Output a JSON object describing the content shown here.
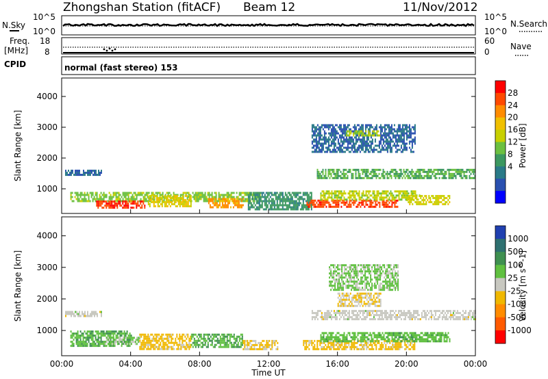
{
  "header": {
    "station": "Zhongshan Station (fitACF)",
    "beam": "Beam 12",
    "date": "11/Nov/2012"
  },
  "strip": {
    "nsky_label": "N.Sky",
    "nsearch_label": "N.Search",
    "nsky_ticks": [
      "10^5",
      "10^0"
    ],
    "nsearch_ticks": [
      "10^5",
      "10^0"
    ],
    "freq_label": "Freq.",
    "freq_unit": "[MHz]",
    "freq_ticks": [
      "18",
      "8"
    ],
    "nave_label": "Nave",
    "nave_ticks": [
      "60",
      "0"
    ],
    "cpid_label": "CPID",
    "cpid_text": "normal (fast stereo) 153"
  },
  "axes": {
    "ylabel": "Slant Range [km]",
    "xlabel": "Time UT",
    "yticks": [
      "4000",
      "3000",
      "2000",
      "1000"
    ],
    "xticks": [
      "00:00",
      "04:00",
      "08:00",
      "12:00",
      "16:00",
      "20:00",
      "00:00"
    ]
  },
  "colorbars": {
    "power": {
      "label": "Power [dB]",
      "ticks": [
        "28",
        "24",
        "20",
        "16",
        "12",
        "8",
        "4"
      ],
      "colors": [
        "#ff0000",
        "#ff4a00",
        "#ff8c00",
        "#f0c000",
        "#c8d000",
        "#6cc040",
        "#3c9860",
        "#2a7a88",
        "#2a50b0",
        "#0000ff"
      ]
    },
    "velocity": {
      "label": "Velocity [m s^-1]",
      "ticks": [
        "1000",
        "500",
        "100",
        "25",
        "-25",
        "-100",
        "-500",
        "-1000"
      ],
      "colors": [
        "#2040b0",
        "#2e7070",
        "#3f9050",
        "#60c040",
        "#c8c8c0",
        "#f0b800",
        "#ff8c00",
        "#ff5a00",
        "#ff0000"
      ]
    }
  },
  "chart_data": [
    {
      "type": "heatmap",
      "title": "Power",
      "xlabel": "Time UT",
      "ylabel": "Slant Range [km]",
      "xlim": [
        0,
        24
      ],
      "ylim": [
        200,
        4600
      ],
      "colorbar": "Power [dB]",
      "clim": [
        0,
        30
      ],
      "regions": [
        {
          "x": [
            0.2,
            2.3
          ],
          "y": [
            1450,
            1620
          ],
          "v": 6
        },
        {
          "x": [
            0.5,
            11.5
          ],
          "y": [
            600,
            900
          ],
          "v": 14
        },
        {
          "x": [
            2.0,
            4.8
          ],
          "y": [
            380,
            620
          ],
          "v": 27
        },
        {
          "x": [
            5.0,
            7.5
          ],
          "y": [
            450,
            800
          ],
          "v": 18
        },
        {
          "x": [
            8.5,
            10.5
          ],
          "y": [
            420,
            700
          ],
          "v": 22
        },
        {
          "x": [
            10.8,
            14.5
          ],
          "y": [
            300,
            900
          ],
          "v": 10
        },
        {
          "x": [
            14.2,
            19.5
          ],
          "y": [
            400,
            650
          ],
          "v": 26
        },
        {
          "x": [
            15.0,
            20.8
          ],
          "y": [
            650,
            950
          ],
          "v": 16
        },
        {
          "x": [
            14.8,
            24.0
          ],
          "y": [
            1350,
            1650
          ],
          "v": 12
        },
        {
          "x": [
            14.5,
            20.5
          ],
          "y": [
            2200,
            3100
          ],
          "v": 6
        },
        {
          "x": [
            16.5,
            18.5
          ],
          "y": [
            2700,
            2900
          ],
          "v": 15
        },
        {
          "x": [
            20.0,
            22.5
          ],
          "y": [
            500,
            800
          ],
          "v": 17
        }
      ]
    },
    {
      "type": "heatmap",
      "title": "Velocity",
      "xlabel": "Time UT",
      "ylabel": "Slant Range [km]",
      "xlim": [
        0,
        24
      ],
      "ylim": [
        200,
        4600
      ],
      "colorbar": "Velocity [m s^-1]",
      "clim": [
        -1000,
        1000
      ],
      "regions": [
        {
          "x": [
            0.2,
            2.3
          ],
          "y": [
            1450,
            1620
          ],
          "v": 0
        },
        {
          "x": [
            0.5,
            4.0
          ],
          "y": [
            500,
            1000
          ],
          "v": 300
        },
        {
          "x": [
            2.5,
            4.5
          ],
          "y": [
            550,
            800
          ],
          "v": 120
        },
        {
          "x": [
            4.5,
            7.5
          ],
          "y": [
            400,
            900
          ],
          "v": -200
        },
        {
          "x": [
            7.5,
            10.5
          ],
          "y": [
            500,
            900
          ],
          "v": 300
        },
        {
          "x": [
            10.5,
            12.5
          ],
          "y": [
            400,
            700
          ],
          "v": -150
        },
        {
          "x": [
            14.0,
            20.5
          ],
          "y": [
            400,
            700
          ],
          "v": -180
        },
        {
          "x": [
            15.0,
            22.5
          ],
          "y": [
            650,
            950
          ],
          "v": 250
        },
        {
          "x": [
            14.5,
            24.0
          ],
          "y": [
            1350,
            1650
          ],
          "v": 0
        },
        {
          "x": [
            15.5,
            19.5
          ],
          "y": [
            2300,
            3100
          ],
          "v": 150
        },
        {
          "x": [
            16.0,
            18.5
          ],
          "y": [
            1800,
            2200
          ],
          "v": -120
        }
      ]
    }
  ]
}
